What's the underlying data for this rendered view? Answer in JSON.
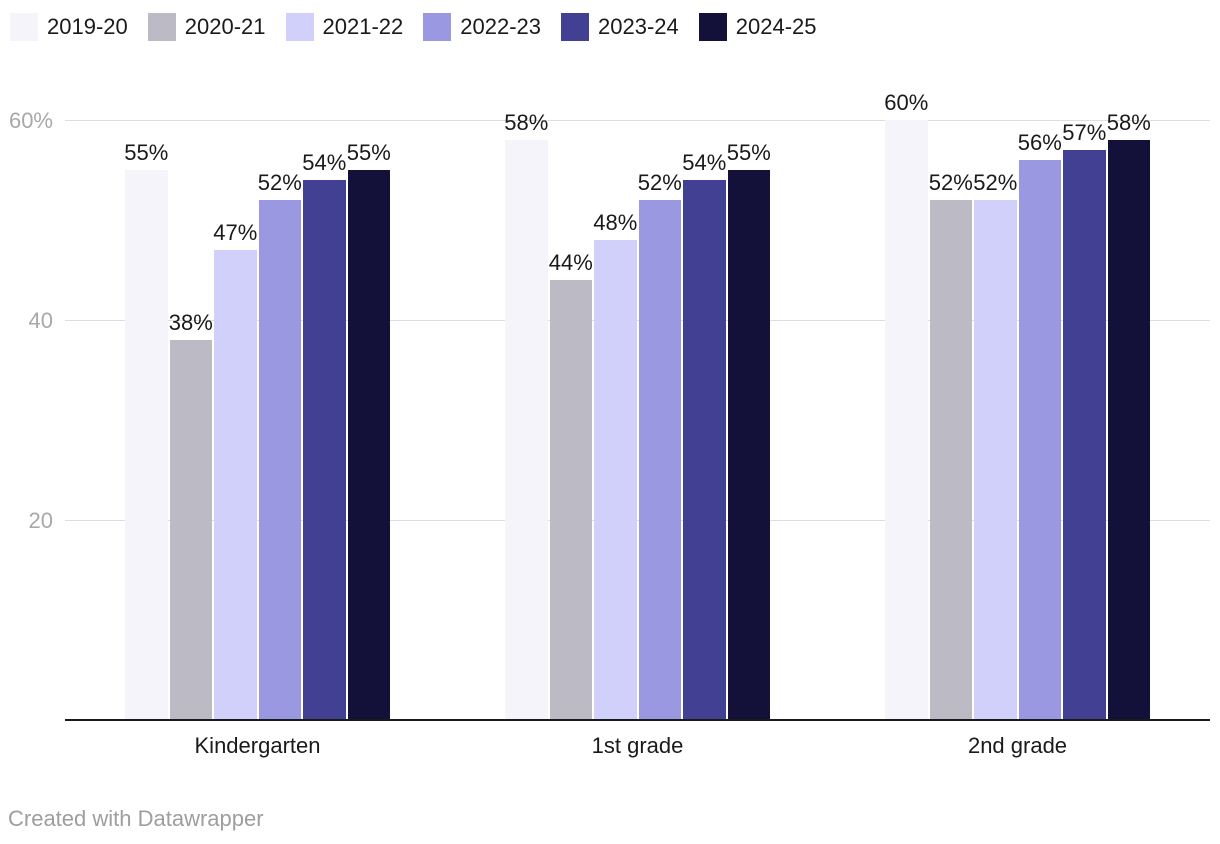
{
  "chart_data": {
    "type": "bar",
    "title": "",
    "grouped": true,
    "categories": [
      "Kindergarten",
      "1st grade",
      "2nd grade"
    ],
    "series": [
      {
        "name": "2019-20",
        "color": "#f5f4fa",
        "values": [
          55,
          58,
          60
        ]
      },
      {
        "name": "2020-21",
        "color": "#bbbac5",
        "values": [
          38,
          44,
          52
        ]
      },
      {
        "name": "2021-22",
        "color": "#d1d0fb",
        "values": [
          47,
          48,
          52
        ]
      },
      {
        "name": "2022-23",
        "color": "#9a98e0",
        "values": [
          52,
          52,
          56
        ]
      },
      {
        "name": "2023-24",
        "color": "#414092",
        "values": [
          54,
          54,
          57
        ]
      },
      {
        "name": "2024-25",
        "color": "#131139",
        "values": [
          55,
          55,
          58
        ]
      }
    ],
    "value_suffix": "%",
    "data_labels": true,
    "y_axis": {
      "min": 0,
      "max": 62,
      "ticks": [
        {
          "value": 20,
          "label": "20"
        },
        {
          "value": 40,
          "label": "40"
        },
        {
          "value": 60,
          "label": "60%"
        }
      ]
    },
    "grid": true,
    "legend_position": "top"
  },
  "footer": {
    "text": "Created with Datawrapper"
  },
  "colors": {
    "background": "#ffffff",
    "label_text": "#1a1a1a",
    "axis_tick_text": "#a8a8a8",
    "gridline": "#dedede",
    "baseline": "#1a1a1a",
    "footer_text": "#9e9e9e"
  }
}
